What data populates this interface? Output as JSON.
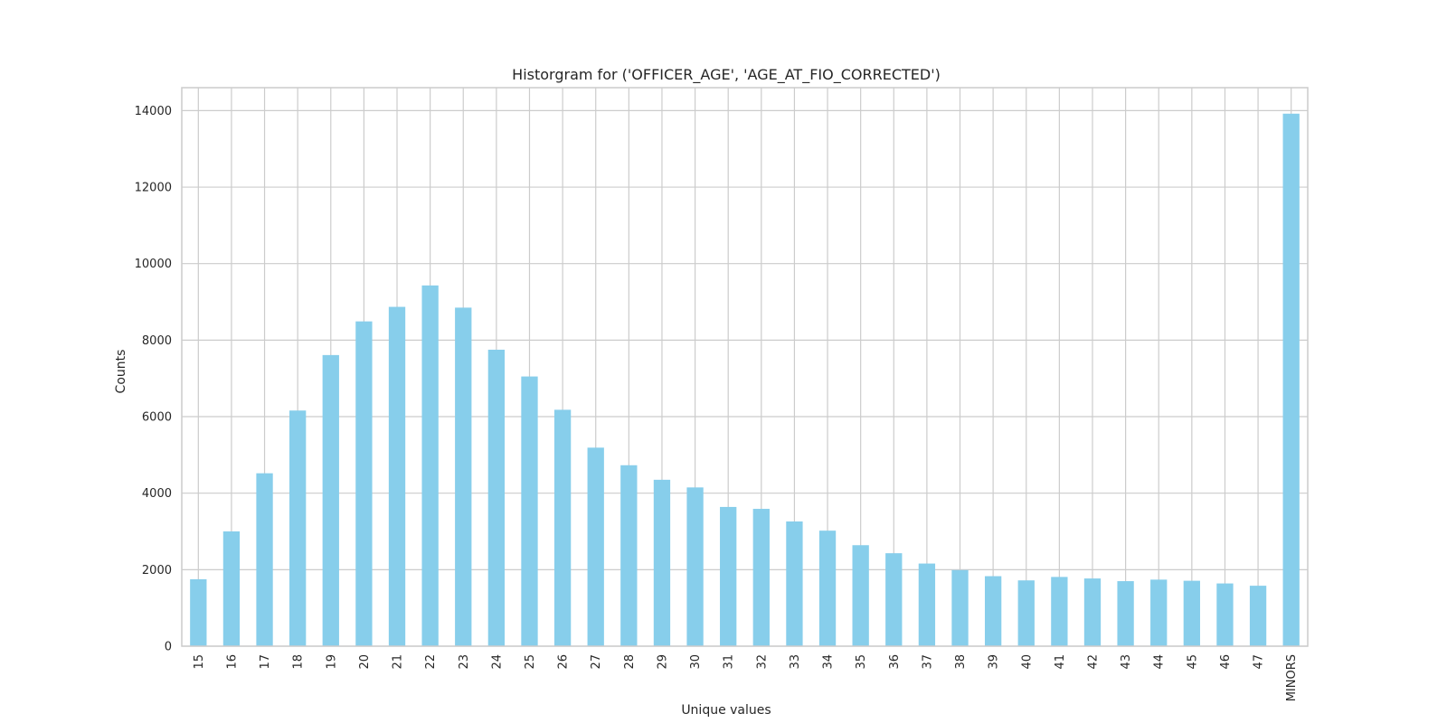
{
  "chart_data": {
    "type": "bar",
    "title": "Historgram for ('OFFICER_AGE', 'AGE_AT_FIO_CORRECTED')",
    "xlabel": "Unique values",
    "ylabel": "Counts",
    "ylim": [
      0,
      14600
    ],
    "yticks": [
      0,
      2000,
      4000,
      6000,
      8000,
      10000,
      12000,
      14000
    ],
    "grid": true,
    "bar_color": "#87ceeb",
    "grid_color": "#cccccc",
    "categories": [
      "15",
      "16",
      "17",
      "18",
      "19",
      "20",
      "21",
      "22",
      "23",
      "24",
      "25",
      "26",
      "27",
      "28",
      "29",
      "30",
      "31",
      "32",
      "33",
      "34",
      "35",
      "36",
      "37",
      "38",
      "39",
      "40",
      "41",
      "42",
      "43",
      "44",
      "45",
      "46",
      "47",
      "MINORS"
    ],
    "values": [
      1750,
      3000,
      4520,
      6160,
      7610,
      8490,
      8870,
      9430,
      8850,
      7750,
      7050,
      6180,
      5190,
      4730,
      4350,
      4150,
      3640,
      3590,
      3260,
      3020,
      2640,
      2430,
      2160,
      1990,
      1830,
      1720,
      1810,
      1770,
      1700,
      1740,
      1710,
      1640,
      1580,
      13920
    ]
  }
}
